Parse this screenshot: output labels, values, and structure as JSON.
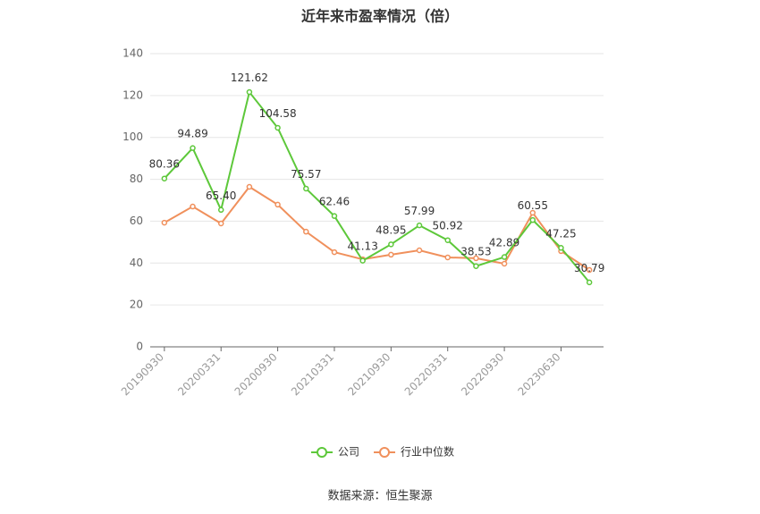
{
  "chart_data": {
    "type": "line",
    "title": "近年来市盈率情况（倍）",
    "categories": [
      "20190930",
      null,
      "20200331",
      null,
      "20200930",
      null,
      "20210331",
      null,
      "20210930",
      null,
      "20220331",
      null,
      "20220930",
      null,
      "20230630",
      null
    ],
    "series": [
      {
        "name": "公司",
        "color": "#5dc83a",
        "values": [
          80.36,
          94.89,
          65.4,
          121.62,
          104.58,
          75.57,
          62.46,
          41.13,
          48.95,
          57.99,
          50.92,
          38.53,
          42.89,
          60.55,
          47.25,
          30.79
        ],
        "value_labels": [
          "80.36",
          "94.89",
          "65.40",
          "121.62",
          "104.58",
          "75.57",
          "62.46",
          "41.13",
          "48.95",
          "57.99",
          "50.92",
          "38.53",
          "42.89",
          "60.55",
          "47.25",
          "30.79"
        ]
      },
      {
        "name": "行业中位数",
        "color": "#f0905c",
        "values": [
          59.3,
          67,
          58.9,
          76.4,
          67.9,
          55,
          45.2,
          41.8,
          44,
          46.1,
          42.7,
          42.3,
          39.7,
          64,
          45.7,
          36.7
        ]
      }
    ],
    "ylim": [
      0,
      140
    ],
    "yticks": [
      0,
      20,
      40,
      60,
      80,
      100,
      120,
      140
    ],
    "grid": true,
    "source": "数据来源：恒生聚源"
  }
}
